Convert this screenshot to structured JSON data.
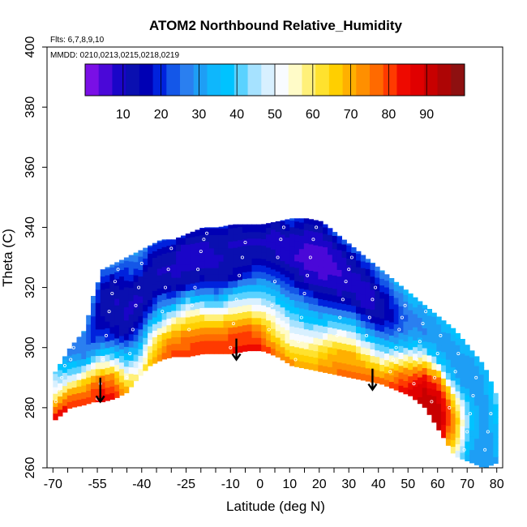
{
  "chart_data": {
    "type": "heatmap",
    "title": "ATOM2 Northbound Relative_Humidity",
    "subtitle_flights": "Flts: 6,7,8,9,10",
    "subtitle_dates": "MMDD: 0210,0213,0215,0218,0219",
    "xlabel": "Latitude (deg N)",
    "ylabel": "Theta (C)",
    "xlim": [
      -72,
      82
    ],
    "ylim": [
      260,
      400
    ],
    "x_ticks": [
      -70,
      -55,
      -40,
      -25,
      -10,
      0,
      10,
      20,
      30,
      40,
      50,
      60,
      70,
      80
    ],
    "x_tick_labels": [
      "-70",
      "-55",
      "-40",
      "-25",
      "-10",
      "0",
      "10",
      "20",
      "30",
      "40",
      "50",
      "60",
      "70",
      "80"
    ],
    "y_ticks": [
      260,
      280,
      300,
      320,
      340,
      360,
      380,
      400
    ],
    "y_tick_labels": [
      "260",
      "280",
      "300",
      "320",
      "340",
      "360",
      "380",
      "400"
    ],
    "colorbar": {
      "range": [
        0,
        100
      ],
      "ticks": [
        10,
        20,
        30,
        40,
        50,
        60,
        70,
        80,
        90
      ],
      "tick_labels": [
        "10",
        "20",
        "30",
        "40",
        "50",
        "60",
        "70",
        "80",
        "90"
      ],
      "colors": [
        "#7a0fe6",
        "#4a08d8",
        "#1a05c8",
        "#0a0fb0",
        "#0000b4",
        "#0022dd",
        "#1457e8",
        "#2a7ff0",
        "#1e9ef5",
        "#0fb7fc",
        "#00c3ff",
        "#5ad2ff",
        "#a6e2ff",
        "#d8f0ff",
        "#f8fbff",
        "#fffbc8",
        "#fff07a",
        "#ffe22e",
        "#ffcf00",
        "#ffb000",
        "#ff8f00",
        "#ff6a00",
        "#ff3a00",
        "#ee0a00",
        "#e00000",
        "#c80000",
        "#ad0505",
        "#8e1010"
      ]
    },
    "sections": [
      {
        "lat": -70,
        "bottom": 276,
        "top": 292,
        "rh": [
          85,
          70,
          55,
          45,
          40
        ]
      },
      {
        "lat": -65,
        "bottom": 280,
        "top": 300,
        "rh": [
          82,
          72,
          50,
          40,
          30,
          25
        ]
      },
      {
        "lat": -60,
        "bottom": 281,
        "top": 306,
        "rh": [
          80,
          72,
          60,
          35,
          25,
          25,
          30
        ]
      },
      {
        "lat": -57,
        "bottom": 282,
        "top": 318,
        "rh": [
          82,
          75,
          55,
          30,
          20,
          20,
          22,
          28
        ]
      },
      {
        "lat": -54,
        "bottom": 282,
        "top": 326,
        "rh": [
          86,
          78,
          50,
          25,
          15,
          12,
          15,
          25
        ]
      },
      {
        "lat": -50,
        "bottom": 283,
        "top": 328,
        "rh": [
          82,
          72,
          40,
          18,
          12,
          10,
          15,
          30
        ]
      },
      {
        "lat": -46,
        "bottom": 285,
        "top": 330,
        "rh": [
          70,
          50,
          30,
          12,
          10,
          12,
          20,
          28
        ]
      },
      {
        "lat": -42,
        "bottom": 290,
        "top": 332,
        "rh": [
          55,
          40,
          25,
          15,
          10,
          12,
          25,
          30
        ]
      },
      {
        "lat": -38,
        "bottom": 294,
        "top": 334,
        "rh": [
          65,
          55,
          40,
          20,
          12,
          12,
          15,
          25
        ]
      },
      {
        "lat": -34,
        "bottom": 296,
        "top": 336,
        "rh": [
          75,
          68,
          45,
          30,
          15,
          10,
          12,
          25
        ]
      },
      {
        "lat": -30,
        "bottom": 297,
        "top": 336,
        "rh": [
          80,
          72,
          55,
          30,
          12,
          10,
          12,
          22
        ]
      },
      {
        "lat": -25,
        "bottom": 297,
        "top": 338,
        "rh": [
          80,
          75,
          60,
          40,
          12,
          10,
          8,
          18
        ]
      },
      {
        "lat": -20,
        "bottom": 298,
        "top": 340,
        "rh": [
          82,
          76,
          58,
          32,
          15,
          8,
          10,
          20
        ]
      },
      {
        "lat": -15,
        "bottom": 298,
        "top": 340,
        "rh": [
          82,
          75,
          55,
          30,
          12,
          10,
          12,
          20
        ]
      },
      {
        "lat": -10,
        "bottom": 298,
        "top": 341,
        "rh": [
          82,
          78,
          60,
          38,
          15,
          12,
          10,
          18
        ]
      },
      {
        "lat": -5,
        "bottom": 299,
        "top": 341,
        "rh": [
          84,
          78,
          58,
          40,
          20,
          12,
          10,
          18
        ]
      },
      {
        "lat": 0,
        "bottom": 299,
        "top": 341,
        "rh": [
          82,
          72,
          55,
          40,
          25,
          15,
          10,
          18
        ]
      },
      {
        "lat": 5,
        "bottom": 297,
        "top": 342,
        "rh": [
          75,
          60,
          50,
          35,
          20,
          10,
          8,
          15
        ]
      },
      {
        "lat": 10,
        "bottom": 294,
        "top": 343,
        "rh": [
          72,
          55,
          45,
          30,
          15,
          8,
          10,
          25
        ]
      },
      {
        "lat": 15,
        "bottom": 293,
        "top": 343,
        "rh": [
          70,
          55,
          40,
          25,
          10,
          5,
          8,
          18
        ]
      },
      {
        "lat": 20,
        "bottom": 292,
        "top": 342,
        "rh": [
          72,
          62,
          40,
          22,
          8,
          4,
          8,
          20
        ]
      },
      {
        "lat": 25,
        "bottom": 291,
        "top": 338,
        "rh": [
          75,
          68,
          50,
          25,
          10,
          6,
          10,
          25
        ]
      },
      {
        "lat": 30,
        "bottom": 290,
        "top": 334,
        "rh": [
          75,
          70,
          52,
          30,
          12,
          8,
          12,
          25
        ]
      },
      {
        "lat": 35,
        "bottom": 289,
        "top": 330,
        "rh": [
          78,
          65,
          45,
          25,
          10,
          8,
          15,
          28
        ]
      },
      {
        "lat": 40,
        "bottom": 288,
        "top": 326,
        "rh": [
          76,
          60,
          40,
          22,
          12,
          12,
          20,
          30
        ]
      },
      {
        "lat": 45,
        "bottom": 286,
        "top": 322,
        "rh": [
          80,
          72,
          50,
          30,
          20,
          20,
          25,
          35
        ]
      },
      {
        "lat": 50,
        "bottom": 284,
        "top": 318,
        "rh": [
          88,
          80,
          65,
          40,
          30,
          25,
          30,
          38
        ]
      },
      {
        "lat": 55,
        "bottom": 280,
        "top": 314,
        "rh": [
          92,
          90,
          82,
          60,
          35,
          28,
          30,
          35
        ]
      },
      {
        "lat": 60,
        "bottom": 272,
        "top": 310,
        "rh": [
          92,
          92,
          88,
          75,
          40,
          30,
          30,
          35
        ]
      },
      {
        "lat": 65,
        "bottom": 264,
        "top": 306,
        "rh": [
          55,
          70,
          72,
          60,
          35,
          30,
          32,
          38
        ]
      },
      {
        "lat": 70,
        "bottom": 262,
        "top": 300,
        "rh": [
          30,
          35,
          40,
          35,
          28,
          30,
          35
        ]
      },
      {
        "lat": 75,
        "bottom": 260,
        "top": 294,
        "rh": [
          32,
          28,
          30,
          30,
          32,
          35
        ]
      },
      {
        "lat": 80,
        "bottom": 262,
        "top": 282,
        "rh": [
          32,
          35,
          40,
          45
        ]
      }
    ],
    "arrows": [
      {
        "lat": -54,
        "theta_top": 290,
        "theta_tip": 282
      },
      {
        "lat": -8,
        "theta_top": 303,
        "theta_tip": 296
      },
      {
        "lat": 38,
        "theta_top": 293,
        "theta_tip": 286
      }
    ],
    "obs_points": [
      [
        -69,
        282
      ],
      [
        -68,
        286
      ],
      [
        -67,
        290
      ],
      [
        -66,
        294
      ],
      [
        -64,
        296
      ],
      [
        -63,
        300
      ],
      [
        -62,
        304
      ],
      [
        -61,
        308
      ],
      [
        -60,
        312
      ],
      [
        -59,
        316
      ],
      [
        -58,
        320
      ],
      [
        -57,
        324
      ],
      [
        -55,
        283
      ],
      [
        -54,
        288
      ],
      [
        -53,
        296
      ],
      [
        -52,
        304
      ],
      [
        -51,
        312
      ],
      [
        -50,
        318
      ],
      [
        -49,
        322
      ],
      [
        -48,
        326
      ],
      [
        -45,
        290
      ],
      [
        -44,
        298
      ],
      [
        -43,
        306
      ],
      [
        -42,
        314
      ],
      [
        -41,
        320
      ],
      [
        -40,
        328
      ],
      [
        -33,
        312
      ],
      [
        -32,
        320
      ],
      [
        -31,
        326
      ],
      [
        -30,
        333
      ],
      [
        -24,
        306
      ],
      [
        -23,
        314
      ],
      [
        -22,
        320
      ],
      [
        -21,
        326
      ],
      [
        -20,
        332
      ],
      [
        -19,
        336
      ],
      [
        -18,
        338
      ],
      [
        -10,
        300
      ],
      [
        -9,
        308
      ],
      [
        -8,
        316
      ],
      [
        -7,
        324
      ],
      [
        -6,
        330
      ],
      [
        -5,
        335
      ],
      [
        3,
        306
      ],
      [
        4,
        314
      ],
      [
        5,
        322
      ],
      [
        6,
        330
      ],
      [
        7,
        336
      ],
      [
        8,
        340
      ],
      [
        12,
        296
      ],
      [
        13,
        302
      ],
      [
        14,
        310
      ],
      [
        15,
        318
      ],
      [
        16,
        324
      ],
      [
        17,
        330
      ],
      [
        18,
        336
      ],
      [
        19,
        340
      ],
      [
        26,
        304
      ],
      [
        27,
        310
      ],
      [
        28,
        316
      ],
      [
        29,
        322
      ],
      [
        30,
        326
      ],
      [
        31,
        330
      ],
      [
        36,
        304
      ],
      [
        37,
        310
      ],
      [
        38,
        316
      ],
      [
        39,
        320
      ],
      [
        44,
        292
      ],
      [
        45,
        296
      ],
      [
        46,
        300
      ],
      [
        47,
        306
      ],
      [
        48,
        310
      ],
      [
        49,
        314
      ],
      [
        52,
        288
      ],
      [
        53,
        296
      ],
      [
        54,
        302
      ],
      [
        55,
        308
      ],
      [
        56,
        312
      ],
      [
        57,
        276
      ],
      [
        58,
        282
      ],
      [
        59,
        290
      ],
      [
        60,
        298
      ],
      [
        61,
        304
      ],
      [
        64,
        280
      ],
      [
        65,
        286
      ],
      [
        66,
        292
      ],
      [
        67,
        298
      ],
      [
        69,
        266
      ],
      [
        70,
        272
      ],
      [
        71,
        278
      ],
      [
        72,
        284
      ],
      [
        73,
        290
      ],
      [
        76,
        266
      ],
      [
        77,
        272
      ],
      [
        78,
        278
      ]
    ]
  }
}
